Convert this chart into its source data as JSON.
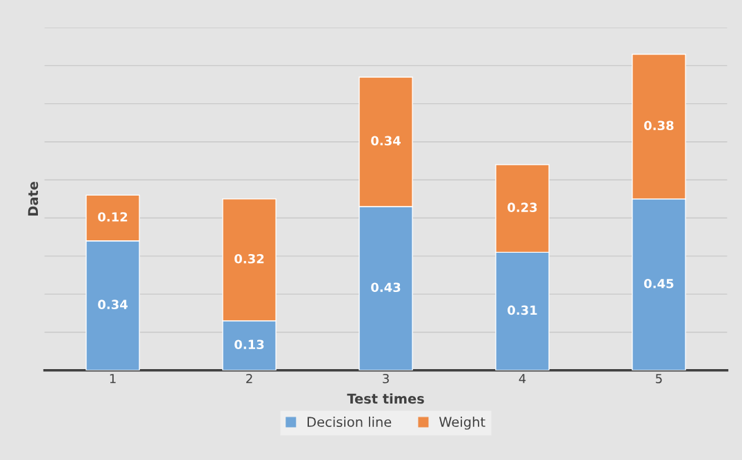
{
  "chart_data": {
    "type": "bar",
    "stacked": true,
    "xlabel": "Test times",
    "ylabel": "Date",
    "categories": [
      "1",
      "2",
      "3",
      "4",
      "5"
    ],
    "series": [
      {
        "name": "Decision line",
        "color": "#6fa5d8",
        "values": [
          0.34,
          0.13,
          0.43,
          0.31,
          0.45
        ]
      },
      {
        "name": "Weight",
        "color": "#ee8a45",
        "values": [
          0.12,
          0.32,
          0.34,
          0.23,
          0.38
        ]
      }
    ],
    "ylim": [
      0,
      0.9
    ],
    "yticks": [
      {
        "value": 0,
        "label": null
      },
      {
        "value": 0.1,
        "label": null
      },
      {
        "value": 0.2,
        "label": null
      },
      {
        "value": 0.3,
        "label": null
      },
      {
        "value": 0.4,
        "label": null
      },
      {
        "value": 0.5,
        "label": null
      },
      {
        "value": 0.6,
        "label": null
      },
      {
        "value": 0.7,
        "label": null
      },
      {
        "value": 0.8,
        "label": null
      },
      {
        "value": 0.9,
        "label": null
      }
    ],
    "tick_labels": "x",
    "grid": "y",
    "legend": "bottom",
    "data_labels": true
  }
}
